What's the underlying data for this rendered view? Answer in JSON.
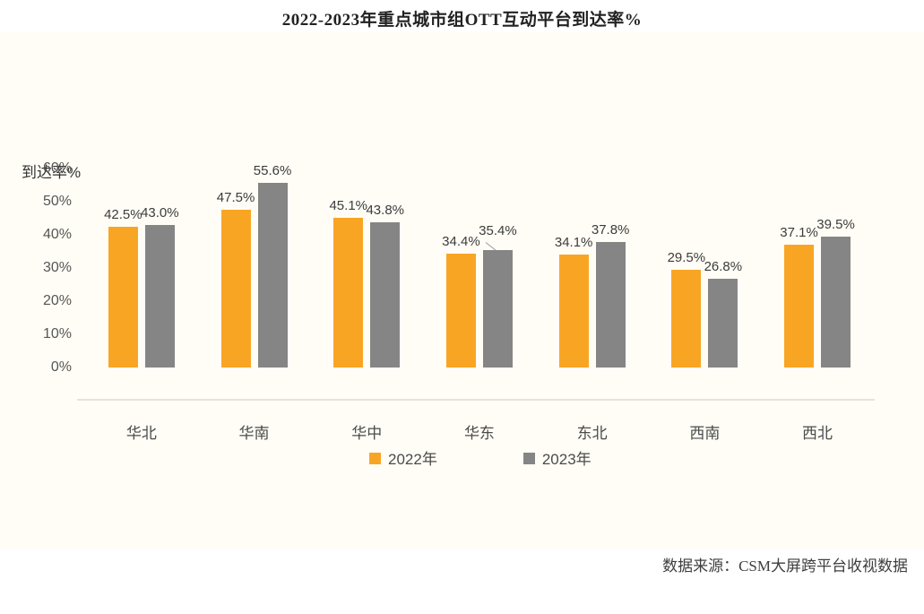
{
  "title": "2022-2023年重点城市组OTT互动平台到达率%",
  "footer": {
    "source": "数据来源：CSM大屏跨平台收视数据"
  },
  "colors": {
    "band_background": "#FFFDF6",
    "bar_2022": "#F9A524",
    "bar_2023": "#858585",
    "axis_line": "#E6E3DC"
  },
  "chart_data": {
    "type": "bar",
    "title": "2022-2023年重点城市组OTT互动平台到达率%",
    "ylabel": "到达率%",
    "xlabel": "",
    "categories": [
      "华北",
      "华南",
      "华中",
      "华东",
      "东北",
      "西南",
      "西北"
    ],
    "series": [
      {
        "name": "2022年",
        "color": "#F9A524",
        "values": [
          42.5,
          47.5,
          45.1,
          34.4,
          34.1,
          29.5,
          37.1
        ]
      },
      {
        "name": "2023年",
        "color": "#858585",
        "values": [
          43.0,
          55.6,
          43.8,
          35.4,
          37.8,
          26.8,
          39.5
        ]
      }
    ],
    "value_label_format": "{value}%",
    "y_ticks": [
      "0%",
      "10%",
      "20%",
      "30%",
      "40%",
      "50%",
      "60%"
    ],
    "ylim": [
      0,
      60
    ],
    "grid": false,
    "legend_position": "bottom",
    "callout": {
      "series_index": 1,
      "category_index": 3,
      "label_raise": 8
    }
  }
}
